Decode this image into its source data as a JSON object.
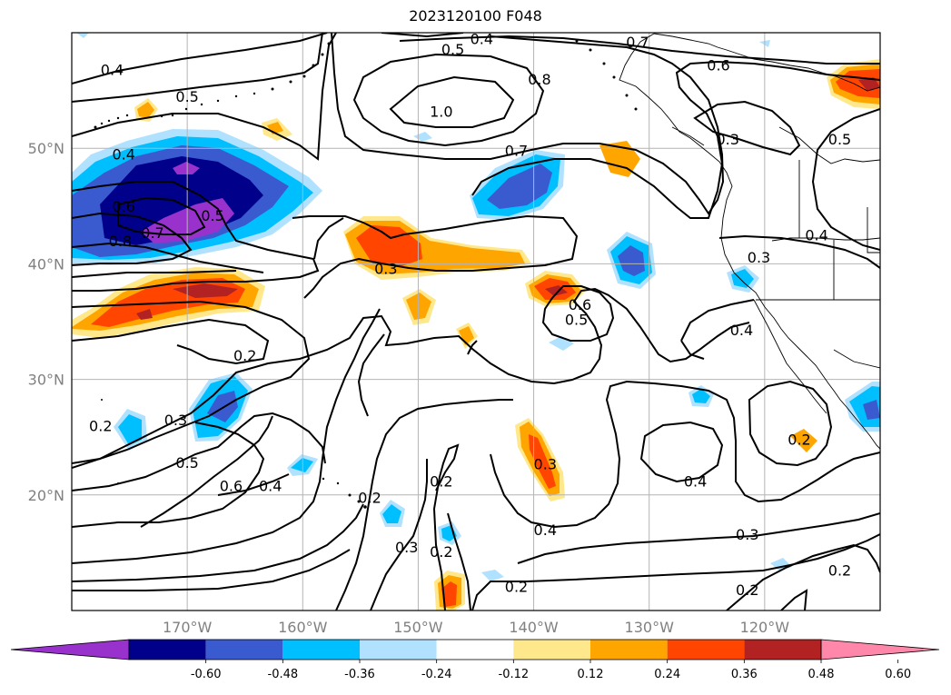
{
  "title": "2023120100 F048",
  "map": {
    "lon_range": [
      -180,
      -110
    ],
    "lat_range": [
      10,
      60
    ],
    "grid": true,
    "lat_ticks": [
      {
        "value": 50,
        "label": "50°N"
      },
      {
        "value": 40,
        "label": "40°N"
      },
      {
        "value": 30,
        "label": "30°N"
      },
      {
        "value": 20,
        "label": "20°N"
      }
    ],
    "lon_ticks": [
      {
        "value": -170,
        "label": "170°W"
      },
      {
        "value": -160,
        "label": "160°W"
      },
      {
        "value": -150,
        "label": "150°W"
      },
      {
        "value": -140,
        "label": "140°W"
      },
      {
        "value": -130,
        "label": "130°W"
      },
      {
        "value": -120,
        "label": "120°W"
      }
    ]
  },
  "colorbar": {
    "extend": "both",
    "colors": [
      "#9932cc",
      "#00008b",
      "#3a5bd0",
      "#00bfff",
      "#b0e2ff",
      "#ffffff",
      "#ffe88c",
      "#ffa500",
      "#ff4500",
      "#b22222",
      "#ff88aa"
    ],
    "tick_labels": [
      "-0.60",
      "-0.48",
      "-0.36",
      "-0.24",
      "-0.12",
      "0.12",
      "0.24",
      "0.36",
      "0.48",
      "0.60"
    ]
  },
  "contour_labels": [
    {
      "text": "0.4",
      "lon": -176.5,
      "lat": 56.8
    },
    {
      "text": "0.5",
      "lon": -147,
      "lat": 58.6
    },
    {
      "text": "0.4",
      "lon": -144.5,
      "lat": 59.5
    },
    {
      "text": "0.7",
      "lon": -131,
      "lat": 59.2
    },
    {
      "text": "0.6",
      "lon": -124,
      "lat": 57.2
    },
    {
      "text": "0.5",
      "lon": -170,
      "lat": 54.5
    },
    {
      "text": "0.8",
      "lon": -139.5,
      "lat": 56.0
    },
    {
      "text": "1.0",
      "lon": -148,
      "lat": 53.2
    },
    {
      "text": "0.7",
      "lon": -141.5,
      "lat": 49.8
    },
    {
      "text": "0.3",
      "lon": -123.2,
      "lat": 50.8
    },
    {
      "text": "0.5",
      "lon": -113.5,
      "lat": 50.8
    },
    {
      "text": "0.4",
      "lon": -115.5,
      "lat": 42.5
    },
    {
      "text": "0.3",
      "lon": -120.5,
      "lat": 40.6
    },
    {
      "text": "0.3",
      "lon": -152.8,
      "lat": 39.6
    },
    {
      "text": "0.6",
      "lon": -136,
      "lat": 36.5
    },
    {
      "text": "0.5",
      "lon": -136.3,
      "lat": 35.2
    },
    {
      "text": "0.4",
      "lon": -122,
      "lat": 34.3
    },
    {
      "text": "0.2",
      "lon": -165,
      "lat": 32.1
    },
    {
      "text": "0.3",
      "lon": -171,
      "lat": 26.5
    },
    {
      "text": "0.2",
      "lon": -177.5,
      "lat": 26.0
    },
    {
      "text": "0.5",
      "lon": -170,
      "lat": 22.8
    },
    {
      "text": "0.6",
      "lon": -166.2,
      "lat": 20.8
    },
    {
      "text": "0.4",
      "lon": -162.8,
      "lat": 20.8
    },
    {
      "text": "0.2",
      "lon": -154.2,
      "lat": 19.8
    },
    {
      "text": "0.2",
      "lon": -148,
      "lat": 21.2
    },
    {
      "text": "0.3",
      "lon": -139,
      "lat": 22.7
    },
    {
      "text": "0.4",
      "lon": -126,
      "lat": 21.2
    },
    {
      "text": "0.4",
      "lon": -139,
      "lat": 17.0
    },
    {
      "text": "0.3",
      "lon": -151,
      "lat": 15.5
    },
    {
      "text": "0.2",
      "lon": -148,
      "lat": 15.1
    },
    {
      "text": "0.3",
      "lon": -121.5,
      "lat": 16.6
    },
    {
      "text": "0.2",
      "lon": -141.5,
      "lat": 12.1
    },
    {
      "text": "0.2",
      "lon": -121.5,
      "lat": 11.8
    },
    {
      "text": "0.2",
      "lon": -113.5,
      "lat": 13.5
    },
    {
      "text": "0.2",
      "lon": -117,
      "lat": 24.8
    },
    {
      "text": "0.6",
      "lon": -175.5,
      "lat": 45.0
    },
    {
      "text": "0.8",
      "lon": -175.8,
      "lat": 42.0
    },
    {
      "text": "0.7",
      "lon": -173,
      "lat": 42.7
    },
    {
      "text": "0.5",
      "lon": -167.8,
      "lat": 44.2
    },
    {
      "text": "0.4",
      "lon": -175.5,
      "lat": 49.5
    }
  ]
}
